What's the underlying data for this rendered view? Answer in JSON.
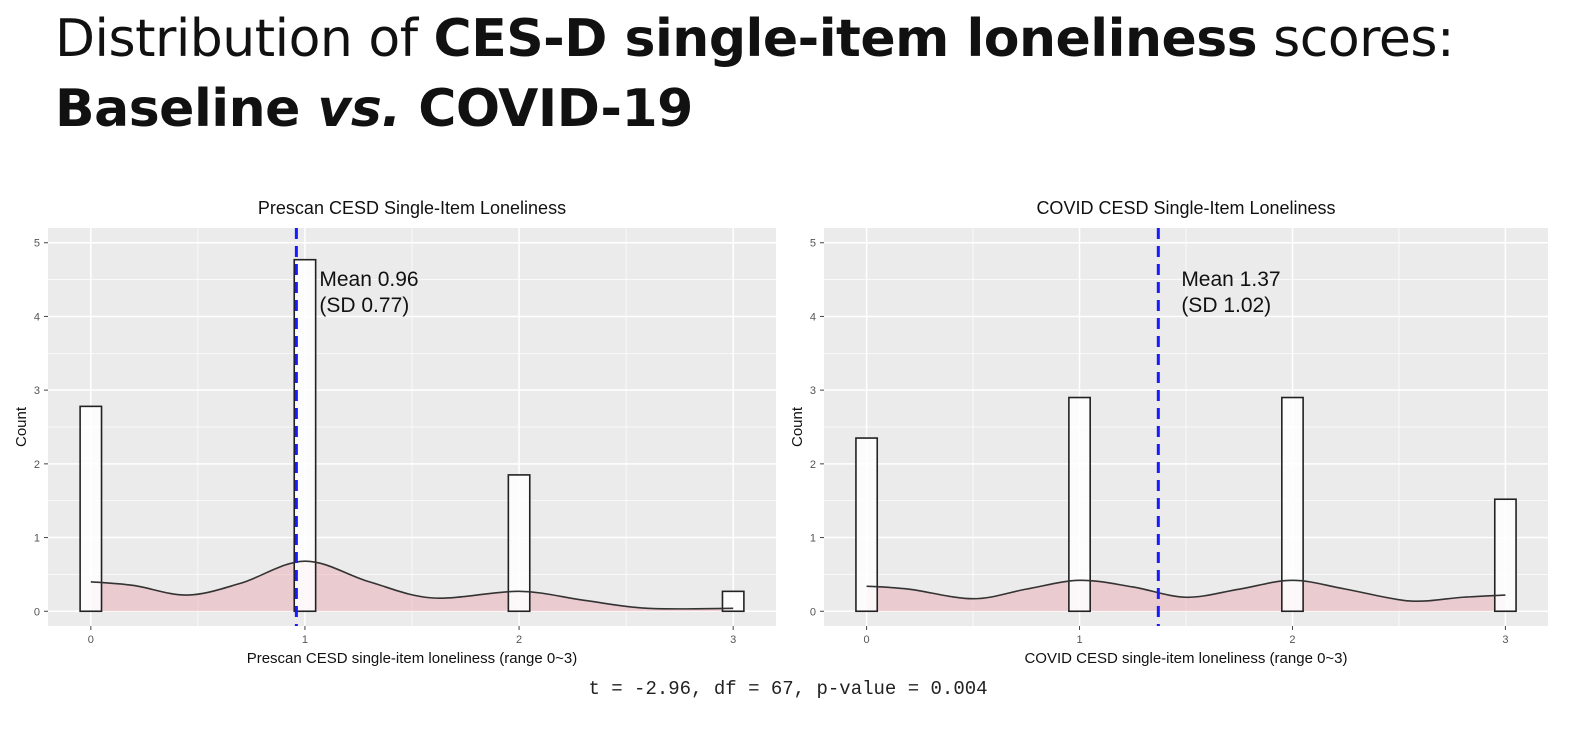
{
  "slide": {
    "title_prefix": "Distribution of ",
    "title_bold": "CES-D single-item loneliness",
    "title_suffix": " scores:",
    "title_line2_bold1": "Baseline ",
    "title_line2_italic": "vs.",
    "title_line2_bold2": " COVID-19",
    "stat_line": "t = -2.96, df = 67, p-value = 0.004"
  },
  "colors": {
    "panel_bg": "#ebebeb",
    "grid": "#ffffff",
    "bar_fill": "#ffffff",
    "bar_stroke": "#222222",
    "density_fill": "#e8a3ad",
    "mean_line": "#1a1aff"
  },
  "chart_data": [
    {
      "type": "histogram",
      "title": "Prescan CESD Single-Item Loneliness",
      "xlabel": "Prescan CESD single-item loneliness (range 0~3)",
      "ylabel": "Count",
      "xlim": [
        -0.2,
        3.2
      ],
      "ylim": [
        -0.2,
        5.2
      ],
      "xticks": [
        "0",
        "1",
        "2",
        "3"
      ],
      "yticks": [
        "0",
        "1",
        "2",
        "3",
        "4",
        "5"
      ],
      "bars": [
        {
          "x": 0,
          "count": 2.78
        },
        {
          "x": 1,
          "count": 4.77
        },
        {
          "x": 2,
          "count": 1.85
        },
        {
          "x": 3,
          "count": 0.27
        }
      ],
      "density": [
        [
          0,
          0.4
        ],
        [
          0.2,
          0.35
        ],
        [
          0.45,
          0.22
        ],
        [
          0.7,
          0.38
        ],
        [
          1,
          0.68
        ],
        [
          1.3,
          0.4
        ],
        [
          1.6,
          0.18
        ],
        [
          2,
          0.27
        ],
        [
          2.3,
          0.15
        ],
        [
          2.6,
          0.04
        ],
        [
          3,
          0.04
        ]
      ],
      "mean": 0.96,
      "mean_label": "Mean 0.96",
      "sd_label": "(SD 0.77)"
    },
    {
      "type": "histogram",
      "title": "COVID CESD Single-Item Loneliness",
      "xlabel": "COVID CESD single-item loneliness (range 0~3)",
      "ylabel": "Count",
      "xlim": [
        -0.2,
        3.2
      ],
      "ylim": [
        -0.2,
        5.2
      ],
      "xticks": [
        "0",
        "1",
        "2",
        "3"
      ],
      "yticks": [
        "0",
        "1",
        "2",
        "3",
        "4",
        "5"
      ],
      "bars": [
        {
          "x": 0,
          "count": 2.35
        },
        {
          "x": 1,
          "count": 2.9
        },
        {
          "x": 2,
          "count": 2.9
        },
        {
          "x": 3,
          "count": 1.52
        }
      ],
      "density": [
        [
          0,
          0.34
        ],
        [
          0.2,
          0.3
        ],
        [
          0.5,
          0.17
        ],
        [
          0.75,
          0.3
        ],
        [
          1,
          0.42
        ],
        [
          1.25,
          0.33
        ],
        [
          1.5,
          0.19
        ],
        [
          1.75,
          0.3
        ],
        [
          2,
          0.42
        ],
        [
          2.25,
          0.3
        ],
        [
          2.55,
          0.14
        ],
        [
          2.8,
          0.19
        ],
        [
          3,
          0.22
        ]
      ],
      "mean": 1.37,
      "mean_label": "Mean 1.37",
      "sd_label": "(SD 1.02)"
    }
  ]
}
